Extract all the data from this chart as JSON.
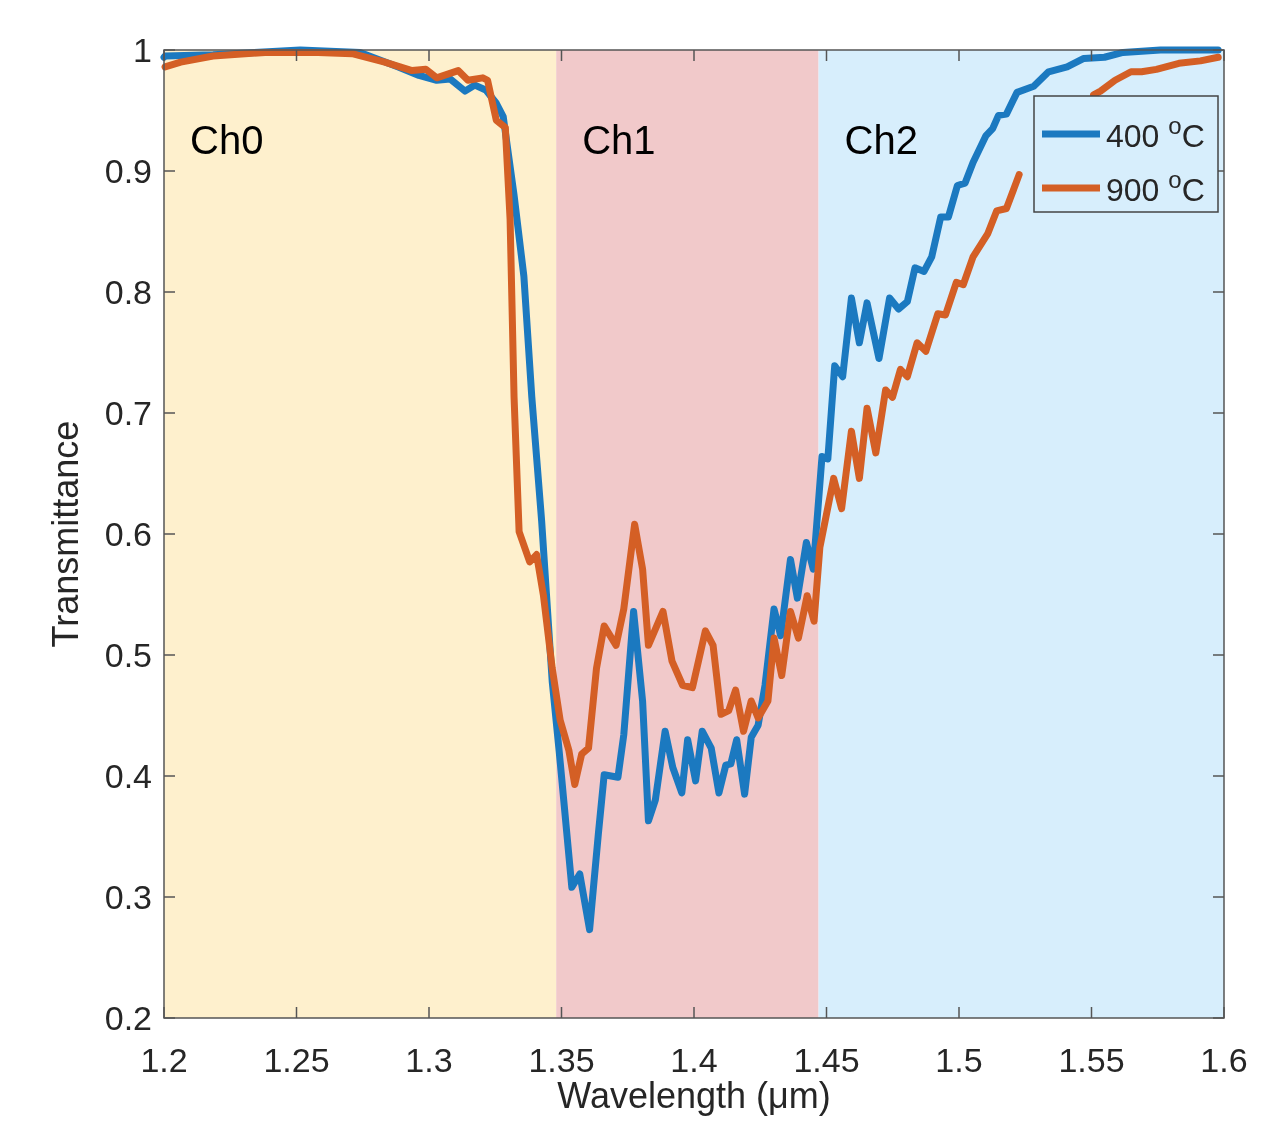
{
  "chart_data": {
    "type": "line",
    "xlabel": "Wavelength (μm)",
    "ylabel": "Transmittance",
    "xlim": [
      1.2,
      1.6
    ],
    "xticks": [
      1.2,
      1.25,
      1.3,
      1.35,
      1.4,
      1.45,
      1.5,
      1.55,
      1.6
    ],
    "ylim": [
      0.2,
      1
    ],
    "yticks": [
      0.2,
      0.3,
      0.4,
      0.5,
      0.6,
      0.7,
      0.8,
      0.9,
      1
    ],
    "grid": false,
    "legend": "top right",
    "line_style": "solid",
    "marker": "none",
    "bands": [
      {
        "axis": "x",
        "from": 1.2,
        "to": 1.348,
        "label": "Ch0",
        "color": "#fef0cd"
      },
      {
        "axis": "x",
        "from": 1.348,
        "to": 1.447,
        "label": "Ch1",
        "color": "#f1c9ca"
      },
      {
        "axis": "x",
        "from": 1.447,
        "to": 1.6,
        "label": "Ch2",
        "color": "#d7eefc"
      }
    ],
    "series": [
      {
        "name": "400 $^{o}$C",
        "color": "#1b79c0",
        "x": [
          1.2,
          1.2004,
          1.2185,
          1.2514,
          1.274,
          1.2884,
          1.2962,
          1.3029,
          1.308,
          1.3136,
          1.3173,
          1.3214,
          1.3254,
          1.328,
          1.3321,
          1.3358,
          1.3388,
          1.3425,
          1.3465,
          1.3491,
          1.3539,
          1.3569,
          1.3606,
          1.3639,
          1.3661,
          1.3713,
          1.3735,
          1.3772,
          1.3806,
          1.3828,
          1.3854,
          1.3891,
          1.392,
          1.3954,
          1.3976,
          1.4006,
          1.4031,
          1.4065,
          1.4094,
          1.412,
          1.4139,
          1.4161,
          1.4191,
          1.4216,
          1.4242,
          1.4268,
          1.4302,
          1.4327,
          1.4364,
          1.439,
          1.4424,
          1.445,
          1.4483,
          1.4505,
          1.4531,
          1.4561,
          1.4594,
          1.4624,
          1.4653,
          1.4698,
          1.4738,
          1.4772,
          1.4805,
          1.4834,
          1.4868,
          1.4897,
          1.4931,
          1.496,
          1.4994,
          1.5023,
          1.5053,
          1.5101,
          1.5127,
          1.5149,
          1.5179,
          1.5219,
          1.5282,
          1.5338,
          1.5408,
          1.5471,
          1.5549,
          1.5619,
          1.576,
          1.5978
        ],
        "values": [
          0.994,
          0.995,
          0.996,
          1.0,
          0.998,
          0.986,
          0.979,
          0.975,
          0.976,
          0.966,
          0.971,
          0.967,
          0.956,
          0.945,
          0.88,
          0.813,
          0.713,
          0.611,
          0.478,
          0.421,
          0.308,
          0.319,
          0.273,
          0.352,
          0.401,
          0.399,
          0.434,
          0.536,
          0.462,
          0.363,
          0.38,
          0.437,
          0.407,
          0.386,
          0.43,
          0.396,
          0.437,
          0.423,
          0.386,
          0.409,
          0.41,
          0.43,
          0.385,
          0.432,
          0.442,
          0.475,
          0.538,
          0.516,
          0.579,
          0.547,
          0.593,
          0.571,
          0.664,
          0.662,
          0.739,
          0.73,
          0.795,
          0.758,
          0.791,
          0.745,
          0.795,
          0.786,
          0.792,
          0.82,
          0.817,
          0.829,
          0.862,
          0.862,
          0.888,
          0.89,
          0.907,
          0.929,
          0.935,
          0.946,
          0.947,
          0.965,
          0.97,
          0.982,
          0.986,
          0.993,
          0.994,
          0.998,
          1.0,
          1.0
        ]
      },
      {
        "name": "900 $^{o}$C",
        "color": "#d45f25",
        "x": [
          1.2004,
          1.2063,
          1.2185,
          1.2381,
          1.2581,
          1.271,
          1.2833,
          1.2936,
          1.2988,
          1.3029,
          1.311,
          1.3147,
          1.3203,
          1.3221,
          1.3254,
          1.3288,
          1.3306,
          1.3321,
          1.334,
          1.338,
          1.3406,
          1.3432,
          1.3465,
          1.3495,
          1.3528,
          1.355,
          1.3576,
          1.3602,
          1.3632,
          1.3661,
          1.3706,
          1.3735,
          1.3776,
          1.3806,
          1.3828,
          1.3883,
          1.3917,
          1.3957,
          1.3994,
          1.4043,
          1.4072,
          1.4102,
          1.4131,
          1.4157,
          1.4187,
          1.4216,
          1.4242,
          1.4279,
          1.4302,
          1.4331,
          1.4364,
          1.4394,
          1.4427,
          1.4453,
          1.4475,
          1.4527,
          1.4557,
          1.4594,
          1.4624,
          1.4653,
          1.4686,
          1.4723,
          1.4749,
          1.4779,
          1.4805,
          1.4842,
          1.4875,
          1.492,
          1.4949,
          1.499,
          1.5016,
          1.5053,
          1.5108,
          1.5142,
          1.5179,
          1.5227,
          1.5371,
          1.5508,
          1.5534,
          1.5589,
          1.5649,
          1.5689,
          1.5745,
          1.583,
          1.5911,
          1.5978
        ],
        "values": [
          0.986,
          0.99,
          0.995,
          0.998,
          0.998,
          0.997,
          0.99,
          0.983,
          0.984,
          0.977,
          0.983,
          0.975,
          0.977,
          0.975,
          0.942,
          0.936,
          0.86,
          0.713,
          0.602,
          0.577,
          0.583,
          0.549,
          0.489,
          0.446,
          0.421,
          0.393,
          0.418,
          0.423,
          0.489,
          0.524,
          0.508,
          0.538,
          0.608,
          0.571,
          0.508,
          0.536,
          0.495,
          0.475,
          0.473,
          0.52,
          0.508,
          0.451,
          0.454,
          0.471,
          0.437,
          0.462,
          0.448,
          0.462,
          0.514,
          0.483,
          0.536,
          0.514,
          0.549,
          0.528,
          0.589,
          0.646,
          0.621,
          0.685,
          0.646,
          0.704,
          0.667,
          0.719,
          0.713,
          0.736,
          0.73,
          0.758,
          0.751,
          0.782,
          0.781,
          0.808,
          0.806,
          0.829,
          0.848,
          0.867,
          0.869,
          0.897,
          null,
          0.963,
          0.966,
          0.975,
          0.982,
          0.982,
          0.984,
          0.989,
          0.991,
          0.994
        ]
      }
    ]
  }
}
